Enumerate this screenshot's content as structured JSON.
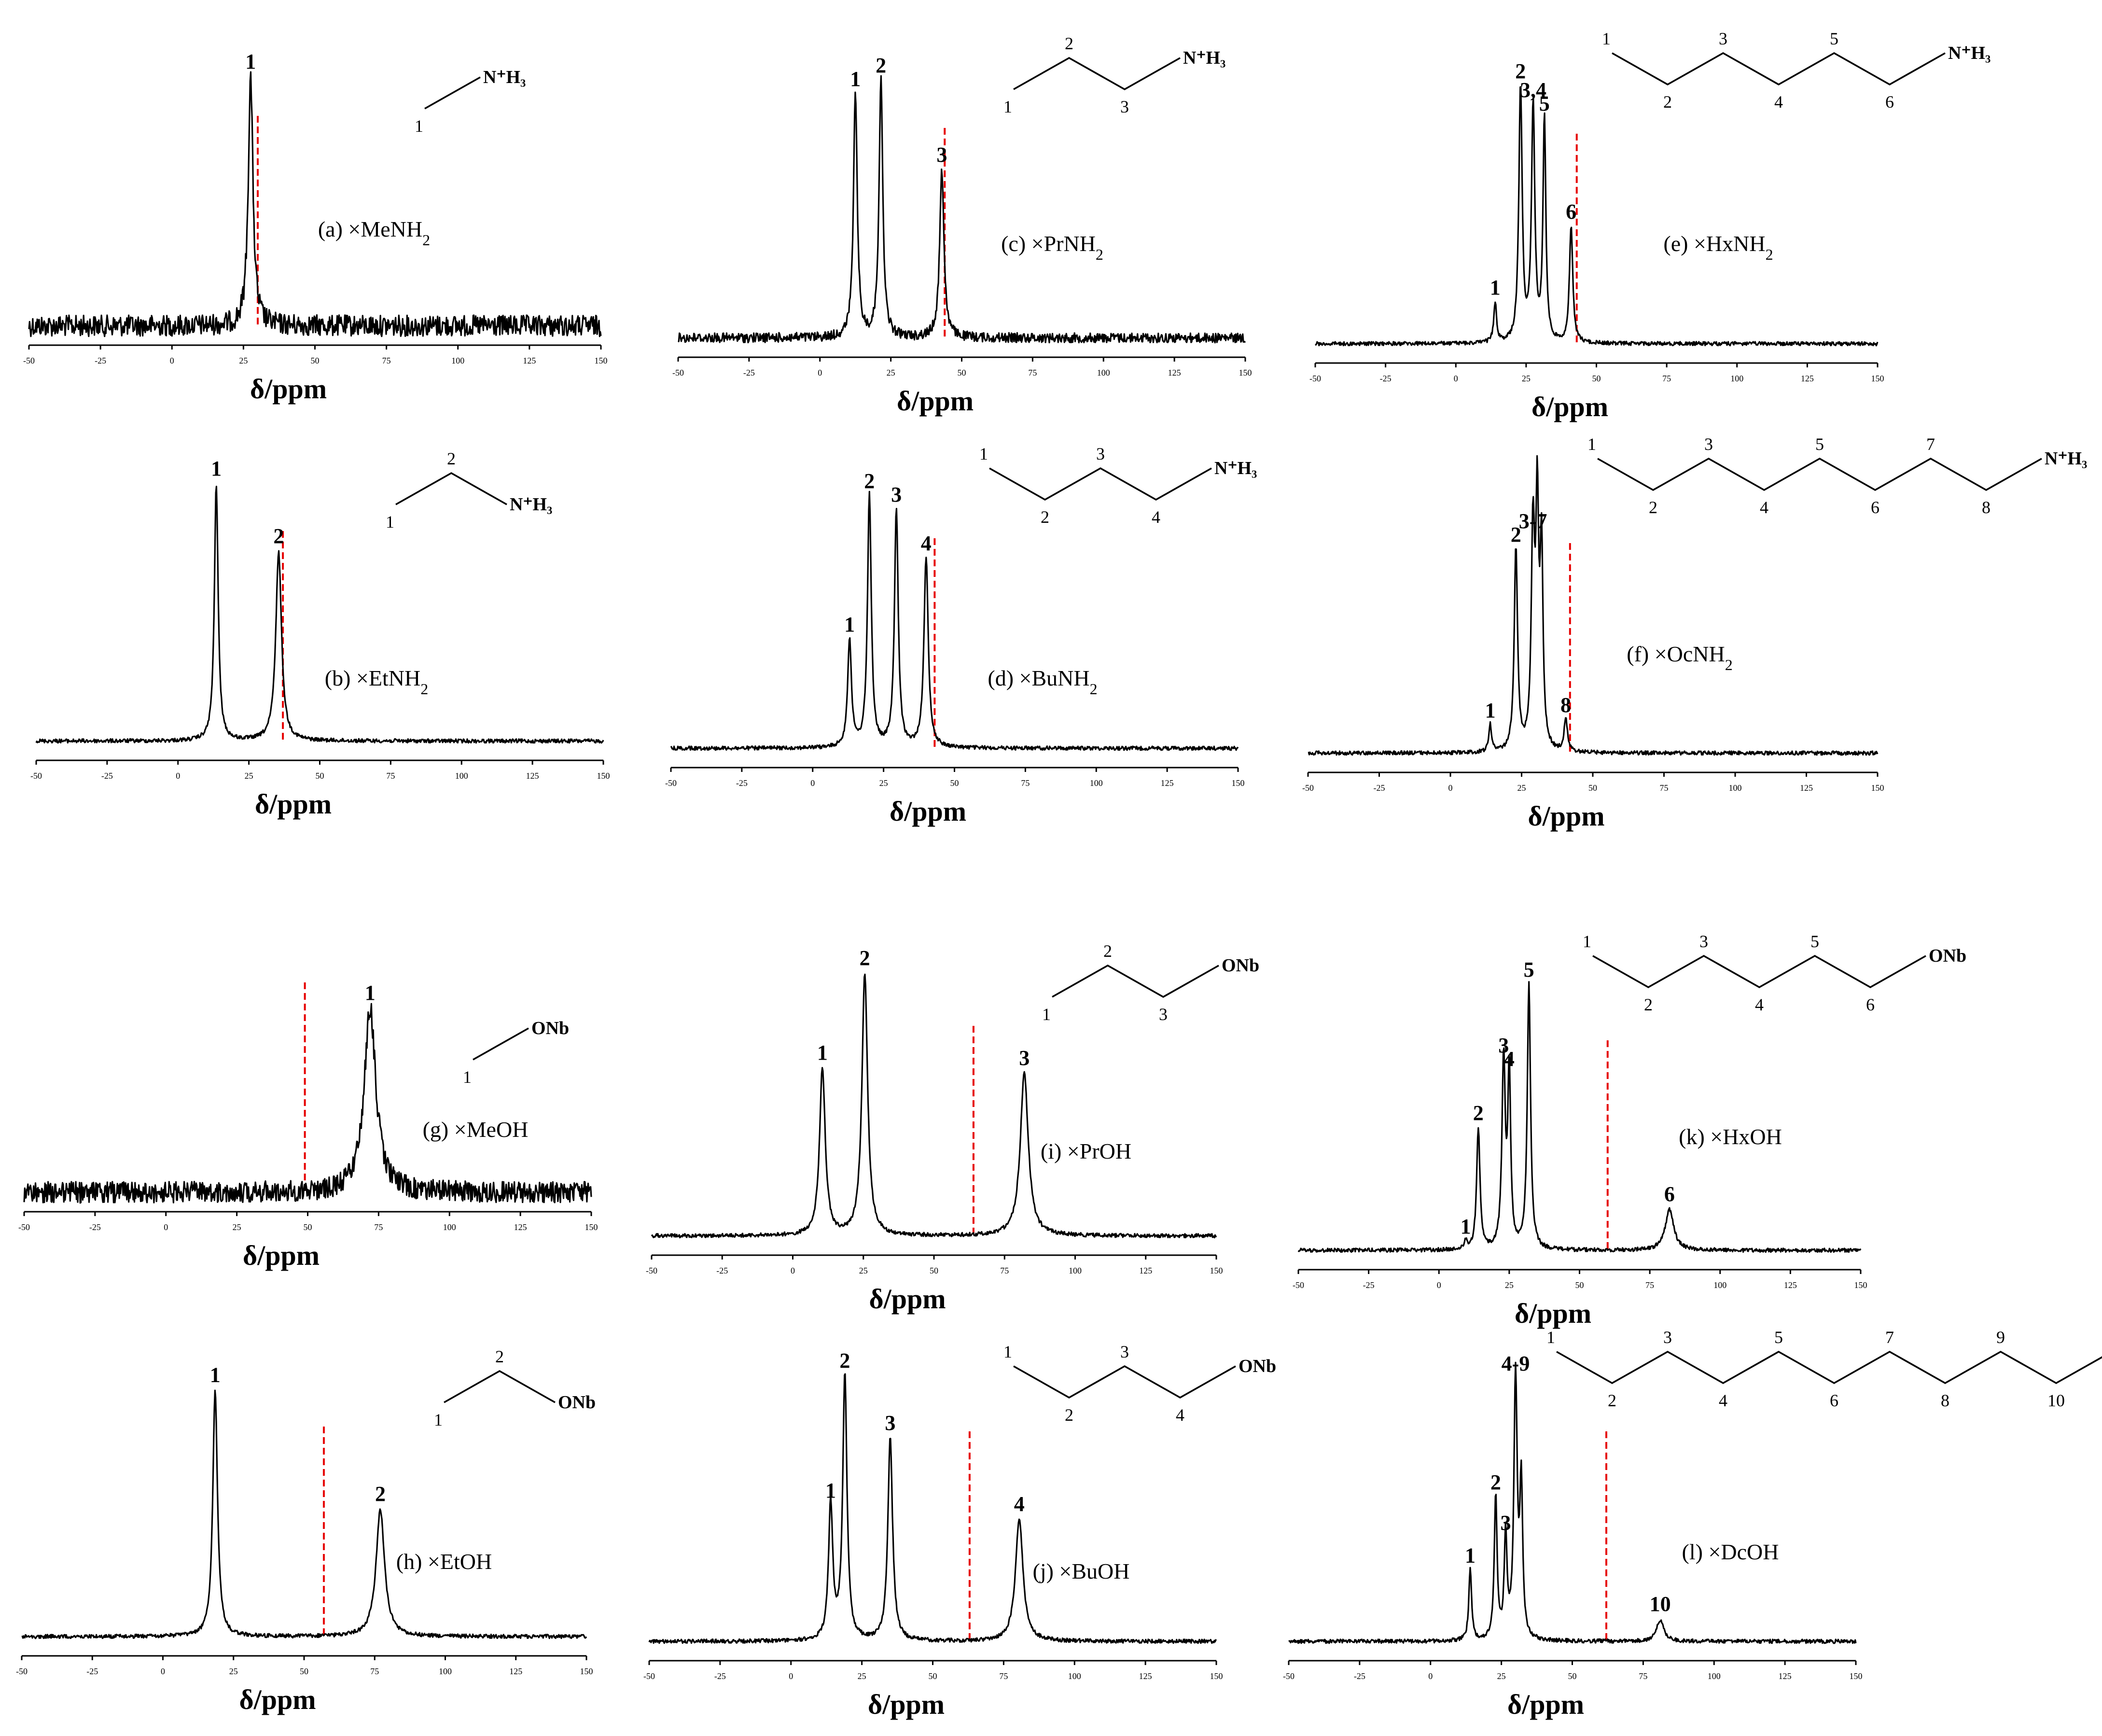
{
  "figure": {
    "colors": {
      "trace": "#000000",
      "reference_line": "#e60000",
      "background": "#ffffff"
    }
  },
  "chart_data": [
    {
      "id": "a",
      "type": "line",
      "label": "(a) ×MeNH",
      "label_sub": "2",
      "xlabel": "δ/ppm",
      "xlim": [
        -50,
        150
      ],
      "x_ticks": [
        -50,
        -25,
        0,
        25,
        50,
        75,
        100,
        125,
        150
      ],
      "x_tick_labels": [
        "-50",
        "-25",
        "0",
        "25",
        "50",
        "75",
        "100",
        "125",
        "150"
      ],
      "reference_line_ppm": 30,
      "noise": "high",
      "peaks": [
        {
          "label": "1",
          "ppm": 27.5,
          "height": 0.92,
          "width": 1.0
        }
      ],
      "structure": {
        "head_group": "N⁺H₃",
        "carbons": 1
      }
    },
    {
      "id": "b",
      "type": "line",
      "label": "(b) ×EtNH",
      "label_sub": "2",
      "xlabel": "δ/ppm",
      "xlim": [
        -50,
        150
      ],
      "x_ticks": [
        -50,
        -25,
        0,
        25,
        50,
        75,
        100,
        125,
        150
      ],
      "x_tick_labels": [
        "-50",
        "-25",
        "0",
        "25",
        "50",
        "75",
        "100",
        "125",
        "150"
      ],
      "reference_line_ppm": 37,
      "noise": "low",
      "peaks": [
        {
          "label": "1",
          "ppm": 13.5,
          "height": 0.95,
          "width": 0.8
        },
        {
          "label": "2",
          "ppm": 35.5,
          "height": 0.7,
          "width": 1.2
        }
      ],
      "structure": {
        "head_group": "N⁺H₃",
        "carbons": 2
      }
    },
    {
      "id": "c",
      "type": "line",
      "label": "(c) ×PrNH",
      "label_sub": "2",
      "xlabel": "δ/ppm",
      "xlim": [
        -50,
        150
      ],
      "x_ticks": [
        -50,
        -25,
        0,
        25,
        50,
        75,
        100,
        125,
        150
      ],
      "x_tick_labels": [
        "-50",
        "-25",
        "0",
        "25",
        "50",
        "75",
        "100",
        "125",
        "150"
      ],
      "reference_line_ppm": 44,
      "noise": "med",
      "peaks": [
        {
          "label": "1",
          "ppm": 12.5,
          "height": 0.9,
          "width": 0.8
        },
        {
          "label": "2",
          "ppm": 21.5,
          "height": 0.95,
          "width": 0.8
        },
        {
          "label": "3",
          "ppm": 43,
          "height": 0.62,
          "width": 0.9
        }
      ],
      "structure": {
        "head_group": "N⁺H₃",
        "carbons": 3
      }
    },
    {
      "id": "d",
      "type": "line",
      "label": "(d) ×BuNH",
      "label_sub": "2",
      "xlabel": "δ/ppm",
      "xlim": [
        -50,
        150
      ],
      "x_ticks": [
        -50,
        -25,
        0,
        25,
        50,
        75,
        100,
        125,
        150
      ],
      "x_tick_labels": [
        "-50",
        "-25",
        "0",
        "25",
        "50",
        "75",
        "100",
        "125",
        "150"
      ],
      "reference_line_ppm": 43,
      "noise": "low",
      "peaks": [
        {
          "label": "1",
          "ppm": 13,
          "height": 0.4,
          "width": 0.8
        },
        {
          "label": "2",
          "ppm": 20,
          "height": 0.93,
          "width": 0.8
        },
        {
          "label": "3",
          "ppm": 29.5,
          "height": 0.88,
          "width": 0.8
        },
        {
          "label": "4",
          "ppm": 40,
          "height": 0.7,
          "width": 0.9
        }
      ],
      "structure": {
        "head_group": "N⁺H₃",
        "carbons": 4
      }
    },
    {
      "id": "e",
      "type": "line",
      "label": "(e) ×HxNH",
      "label_sub": "2",
      "xlabel": "δ/ppm",
      "xlim": [
        -50,
        150
      ],
      "x_ticks": [
        -50,
        -25,
        0,
        25,
        50,
        75,
        100,
        125,
        150
      ],
      "x_tick_labels": [
        "-50",
        "-25",
        "0",
        "25",
        "50",
        "75",
        "100",
        "125",
        "150"
      ],
      "reference_line_ppm": 43,
      "noise": "low",
      "peaks": [
        {
          "label": "1",
          "ppm": 14,
          "height": 0.15,
          "width": 0.6
        },
        {
          "label": "2",
          "ppm": 23,
          "height": 0.95,
          "width": 0.7
        },
        {
          "label": "3,4",
          "ppm": 27.5,
          "height": 0.88,
          "width": 0.7
        },
        {
          "label": "5",
          "ppm": 31.5,
          "height": 0.83,
          "width": 0.6
        },
        {
          "label": "6",
          "ppm": 41,
          "height": 0.43,
          "width": 0.7
        }
      ],
      "structure": {
        "head_group": "N⁺H₃",
        "carbons": 6
      }
    },
    {
      "id": "f",
      "type": "line",
      "label": "(f) ×OcNH",
      "label_sub": "2",
      "xlabel": "δ/ppm",
      "xlim": [
        -50,
        150
      ],
      "x_ticks": [
        -50,
        -25,
        0,
        25,
        50,
        75,
        100,
        125,
        150
      ],
      "x_tick_labels": [
        "-50",
        "-25",
        "0",
        "25",
        "50",
        "75",
        "100",
        "125",
        "150"
      ],
      "reference_line_ppm": 42,
      "noise": "low",
      "peaks": [
        {
          "label": "1",
          "ppm": 14,
          "height": 0.1,
          "width": 0.6
        },
        {
          "label": "2",
          "ppm": 23,
          "height": 0.75,
          "width": 0.7
        },
        {
          "label": "3-7",
          "ppm": 29,
          "height": 0.8,
          "width": 0.7
        },
        {
          "label": "",
          "ppm": 30.5,
          "height": 0.85,
          "width": 0.6
        },
        {
          "label": "",
          "ppm": 32,
          "height": 0.73,
          "width": 0.6
        },
        {
          "label": "8",
          "ppm": 40.5,
          "height": 0.12,
          "width": 0.7
        }
      ],
      "structure": {
        "head_group": "N⁺H₃",
        "carbons": 8
      }
    },
    {
      "id": "g",
      "type": "line",
      "label": "(g) ×MeOH",
      "label_sub": "",
      "xlabel": "δ/ppm",
      "xlim": [
        -50,
        150
      ],
      "x_ticks": [
        -50,
        -25,
        0,
        25,
        50,
        75,
        100,
        125,
        150
      ],
      "x_tick_labels": [
        "-50",
        "-25",
        "0",
        "25",
        "50",
        "75",
        "100",
        "125",
        "150"
      ],
      "reference_line_ppm": 49,
      "noise": "high",
      "peaks": [
        {
          "label": "1",
          "ppm": 72,
          "height": 0.68,
          "width": 2.5
        }
      ],
      "structure": {
        "head_group": "ONb",
        "carbons": 1
      }
    },
    {
      "id": "h",
      "type": "line",
      "label": "(h) ×EtOH",
      "label_sub": "",
      "xlabel": "δ/ppm",
      "xlim": [
        -50,
        150
      ],
      "x_ticks": [
        -50,
        -25,
        0,
        25,
        50,
        75,
        100,
        125,
        150
      ],
      "x_tick_labels": [
        "-50",
        "-25",
        "0",
        "25",
        "50",
        "75",
        "100",
        "125",
        "150"
      ],
      "reference_line_ppm": 57,
      "noise": "low",
      "peaks": [
        {
          "label": "1",
          "ppm": 18.5,
          "height": 0.91,
          "width": 1.0
        },
        {
          "label": "2",
          "ppm": 77,
          "height": 0.47,
          "width": 1.8
        }
      ],
      "structure": {
        "head_group": "ONb",
        "carbons": 2
      }
    },
    {
      "id": "i",
      "type": "line",
      "label": "(i) ×PrOH",
      "label_sub": "",
      "xlabel": "δ/ppm",
      "xlim": [
        -50,
        150
      ],
      "x_ticks": [
        -50,
        -25,
        0,
        25,
        50,
        75,
        100,
        125,
        150
      ],
      "x_tick_labels": [
        "-50",
        "-25",
        "0",
        "25",
        "50",
        "75",
        "100",
        "125",
        "150"
      ],
      "reference_line_ppm": 64,
      "noise": "low",
      "peaks": [
        {
          "label": "1",
          "ppm": 10.5,
          "height": 0.62,
          "width": 1.2
        },
        {
          "label": "2",
          "ppm": 25.5,
          "height": 0.97,
          "width": 1.2
        },
        {
          "label": "3",
          "ppm": 82,
          "height": 0.6,
          "width": 1.7
        }
      ],
      "structure": {
        "head_group": "ONb",
        "carbons": 3
      }
    },
    {
      "id": "j",
      "type": "line",
      "label": "(j) ×BuOH",
      "label_sub": "",
      "xlabel": "δ/ppm",
      "xlim": [
        -50,
        150
      ],
      "x_ticks": [
        -50,
        -25,
        0,
        25,
        50,
        75,
        100,
        125,
        150
      ],
      "x_tick_labels": [
        "-50",
        "-25",
        "0",
        "25",
        "50",
        "75",
        "100",
        "125",
        "150"
      ],
      "reference_line_ppm": 63,
      "noise": "low",
      "peaks": [
        {
          "label": "1",
          "ppm": 14,
          "height": 0.5,
          "width": 0.9
        },
        {
          "label": "2",
          "ppm": 19,
          "height": 0.98,
          "width": 0.9
        },
        {
          "label": "3",
          "ppm": 35,
          "height": 0.75,
          "width": 1.0
        },
        {
          "label": "4",
          "ppm": 80.5,
          "height": 0.45,
          "width": 1.6
        }
      ],
      "structure": {
        "head_group": "ONb",
        "carbons": 4
      }
    },
    {
      "id": "k",
      "type": "line",
      "label": "(k) ×HxOH",
      "label_sub": "",
      "xlabel": "δ/ppm",
      "xlim": [
        -50,
        150
      ],
      "x_ticks": [
        -50,
        -25,
        0,
        25,
        50,
        75,
        100,
        125,
        150
      ],
      "x_tick_labels": [
        "-50",
        "-25",
        "0",
        "25",
        "50",
        "75",
        "100",
        "125",
        "150"
      ],
      "reference_line_ppm": 60,
      "noise": "low",
      "peaks": [
        {
          "label": "1",
          "ppm": 9.5,
          "height": 0.03,
          "width": 0.6
        },
        {
          "label": "2",
          "ppm": 14,
          "height": 0.45,
          "width": 0.7
        },
        {
          "label": "3",
          "ppm": 23,
          "height": 0.7,
          "width": 0.7
        },
        {
          "label": "4",
          "ppm": 25,
          "height": 0.65,
          "width": 0.6
        },
        {
          "label": "5",
          "ppm": 32,
          "height": 0.98,
          "width": 0.7
        },
        {
          "label": "6",
          "ppm": 82,
          "height": 0.15,
          "width": 1.8
        }
      ],
      "structure": {
        "head_group": "ONb",
        "carbons": 6
      }
    },
    {
      "id": "l",
      "type": "line",
      "label": "(l) ×DcOH",
      "label_sub": "",
      "xlabel": "δ/ppm",
      "xlim": [
        -50,
        150
      ],
      "x_ticks": [
        -50,
        -25,
        0,
        25,
        50,
        75,
        100,
        125,
        150
      ],
      "x_tick_labels": [
        "-50",
        "-25",
        "0",
        "25",
        "50",
        "75",
        "100",
        "125",
        "150"
      ],
      "reference_line_ppm": 62,
      "noise": "low",
      "peaks": [
        {
          "label": "1",
          "ppm": 14,
          "height": 0.26,
          "width": 0.6
        },
        {
          "label": "2",
          "ppm": 23,
          "height": 0.53,
          "width": 0.6
        },
        {
          "label": "3",
          "ppm": 26.5,
          "height": 0.38,
          "width": 0.6
        },
        {
          "label": "4-9",
          "ppm": 30,
          "height": 0.97,
          "width": 0.7
        },
        {
          "label": "",
          "ppm": 32,
          "height": 0.55,
          "width": 0.6
        },
        {
          "label": "10",
          "ppm": 81,
          "height": 0.08,
          "width": 1.5
        }
      ],
      "structure": {
        "head_group": "ONb",
        "carbons": 10
      }
    }
  ]
}
